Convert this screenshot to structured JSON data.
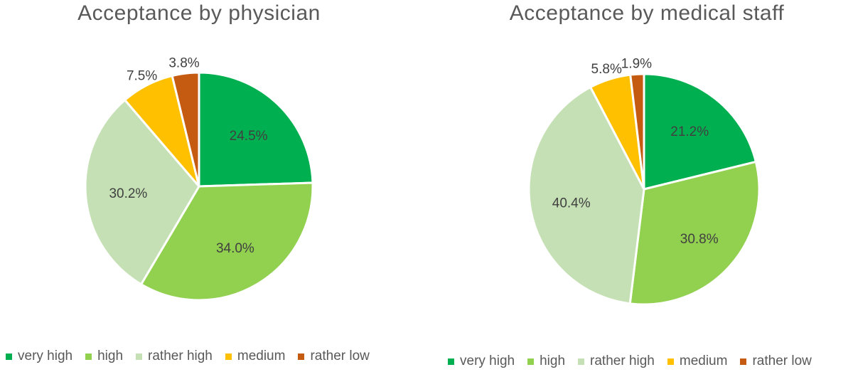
{
  "colors": {
    "very_high": "#00b050",
    "high": "#92d050",
    "rather_high": "#c5e0b4",
    "medium": "#ffc000",
    "rather_low": "#c55a11"
  },
  "legend": [
    "very high",
    "high",
    "rather high",
    "medium",
    "rather low"
  ],
  "chart_data": [
    {
      "type": "pie",
      "title": "Acceptance by physician",
      "categories": [
        "very high",
        "high",
        "rather high",
        "medium",
        "rather low"
      ],
      "values": [
        24.5,
        34.0,
        30.2,
        7.5,
        3.8
      ],
      "labels": [
        "24.5%",
        "34.0%",
        "30.2%",
        "7.5%",
        "3.8%"
      ],
      "legend_position": "bottom"
    },
    {
      "type": "pie",
      "title": "Acceptance by medical staff",
      "categories": [
        "very high",
        "high",
        "rather high",
        "medium",
        "rather low"
      ],
      "values": [
        21.2,
        30.8,
        40.4,
        5.8,
        1.9
      ],
      "labels": [
        "21.2%",
        "30.8%",
        "40.4%",
        "5.8%",
        "1.9%"
      ],
      "legend_position": "bottom"
    }
  ]
}
